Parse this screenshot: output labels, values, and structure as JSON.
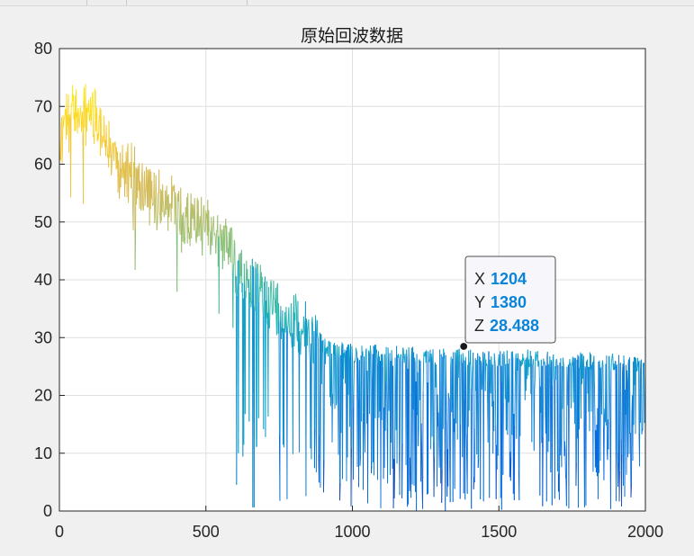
{
  "figure": {
    "title": "原始回波数据"
  },
  "chart_data": {
    "type": "line",
    "title": "原始回波数据",
    "xlabel": "",
    "ylabel": "",
    "xlim": [
      0,
      2000
    ],
    "ylim": [
      0,
      80
    ],
    "xticks": [
      0,
      500,
      1000,
      1500,
      2000
    ],
    "xtick_labels": [
      "0",
      "500",
      "1000",
      "1500",
      "2000"
    ],
    "yticks": [
      0,
      10,
      20,
      30,
      40,
      50,
      60,
      70,
      80
    ],
    "ytick_labels": [
      "0",
      "10",
      "20",
      "30",
      "40",
      "50",
      "60",
      "70",
      "80"
    ],
    "grid": true,
    "colormap": "parula",
    "colormap_stops": [
      "#352a87",
      "#0363e1",
      "#1485d4",
      "#06a7c6",
      "#38b99e",
      "#92bf73",
      "#d9ba56",
      "#fcce2e",
      "#f9fb0e"
    ],
    "envelope": {
      "x": [
        0,
        20,
        60,
        130,
        200,
        300,
        400,
        500,
        600,
        700,
        800,
        870,
        900,
        1000,
        1200,
        1400,
        1600,
        1800,
        2000
      ],
      "y": [
        65,
        70,
        72,
        70,
        62,
        58,
        54,
        52,
        47,
        42,
        38,
        35,
        30,
        29,
        28.5,
        28,
        28,
        27.5,
        27
      ]
    },
    "datatip": {
      "x_label": "X",
      "x_value": "1204",
      "y_label": "Y",
      "y_value": "1380",
      "z_label": "Z",
      "z_value": "28.488",
      "anchor_x": 1380,
      "anchor_y": 28.488
    }
  }
}
